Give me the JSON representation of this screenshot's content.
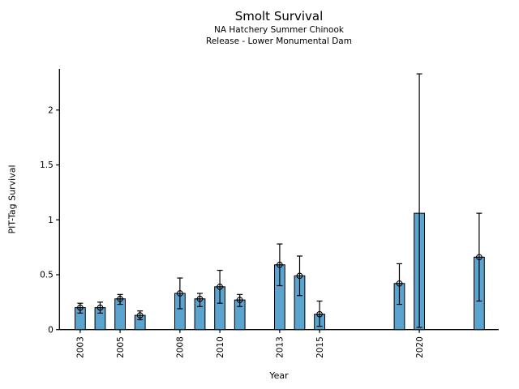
{
  "chart_data": {
    "type": "bar",
    "title": "Smolt Survival",
    "subtitle1": "NA Hatchery Summer Chinook",
    "subtitle2": "Release - Lower Monumental Dam",
    "xlabel": "Year",
    "ylabel": "PIT-Tag Survival",
    "x_ticks": [
      2003,
      2005,
      2008,
      2010,
      2013,
      2015,
      2020
    ],
    "y_ticks": [
      0,
      0.5,
      1,
      1.5,
      2
    ],
    "y_tick_labels": [
      "0",
      "0.5",
      "1",
      "1.5",
      "2"
    ],
    "xlim": [
      2001.96,
      2023.98
    ],
    "ylim": [
      0,
      2.375
    ],
    "grid": false,
    "legend": "none",
    "bar_color": "#5BA4D0",
    "bar_edge_color": "#000000",
    "error_bar_color": "#000000",
    "marker_style": "open-circle-plus",
    "bar_width_years": 0.52,
    "points": [
      {
        "year": 2003,
        "value": 0.2,
        "ci_low": 0.15,
        "ci_high": 0.24,
        "marker": true
      },
      {
        "year": 2004,
        "value": 0.2,
        "ci_low": 0.15,
        "ci_high": 0.25,
        "marker": true
      },
      {
        "year": 2005,
        "value": 0.28,
        "ci_low": 0.23,
        "ci_high": 0.32,
        "marker": true
      },
      {
        "year": 2006,
        "value": 0.13,
        "ci_low": 0.09,
        "ci_high": 0.17,
        "marker": true
      },
      {
        "year": 2008,
        "value": 0.33,
        "ci_low": 0.19,
        "ci_high": 0.47,
        "marker": true
      },
      {
        "year": 2009,
        "value": 0.28,
        "ci_low": 0.21,
        "ci_high": 0.33,
        "marker": true
      },
      {
        "year": 2010,
        "value": 0.39,
        "ci_low": 0.24,
        "ci_high": 0.54,
        "marker": true
      },
      {
        "year": 2011,
        "value": 0.27,
        "ci_low": 0.21,
        "ci_high": 0.32,
        "marker": true
      },
      {
        "year": 2013,
        "value": 0.59,
        "ci_low": 0.4,
        "ci_high": 0.78,
        "marker": true
      },
      {
        "year": 2014,
        "value": 0.49,
        "ci_low": 0.31,
        "ci_high": 0.67,
        "marker": true
      },
      {
        "year": 2015,
        "value": 0.14,
        "ci_low": 0.03,
        "ci_high": 0.26,
        "marker": true
      },
      {
        "year": 2019,
        "value": 0.42,
        "ci_low": 0.23,
        "ci_high": 0.6,
        "marker": true
      },
      {
        "year": 2020,
        "value": 1.06,
        "ci_low": 0.02,
        "ci_high": 2.33,
        "marker": false
      },
      {
        "year": 2023,
        "value": 0.66,
        "ci_low": 0.26,
        "ci_high": 1.06,
        "marker": true
      }
    ]
  }
}
